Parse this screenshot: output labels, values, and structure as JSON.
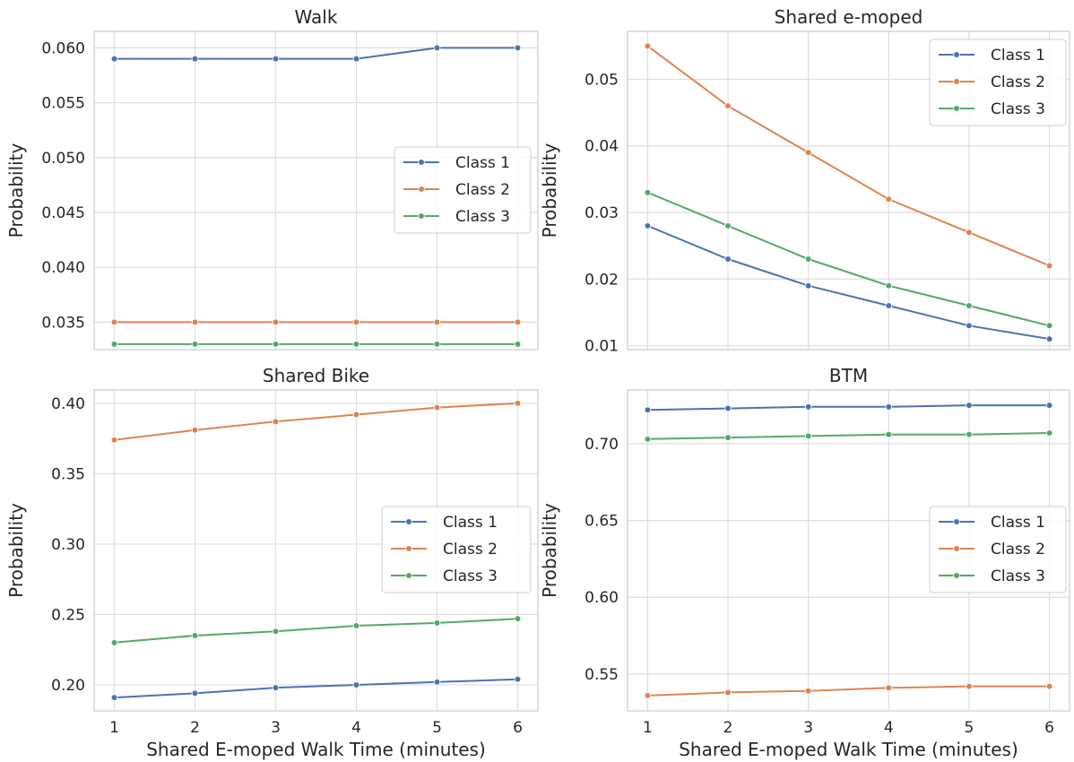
{
  "chart_data": [
    {
      "type": "line",
      "title": "Walk",
      "xlabel": "",
      "ylabel": "Probability",
      "x": [
        1,
        2,
        3,
        4,
        5,
        6
      ],
      "xlim": [
        0.75,
        6.25
      ],
      "ylim": [
        0.0325,
        0.0615
      ],
      "yticks": [
        "0.035",
        "0.040",
        "0.045",
        "0.050",
        "0.055",
        "0.060"
      ],
      "xticks": [],
      "legend": "center right",
      "grid": true,
      "series": [
        {
          "name": "Class 1",
          "color": "#4c72b0",
          "values": [
            0.059,
            0.059,
            0.059,
            0.059,
            0.06,
            0.06
          ]
        },
        {
          "name": "Class 2",
          "color": "#dd8452",
          "values": [
            0.035,
            0.035,
            0.035,
            0.035,
            0.035,
            0.035
          ]
        },
        {
          "name": "Class 3",
          "color": "#55a868",
          "values": [
            0.033,
            0.033,
            0.033,
            0.033,
            0.033,
            0.033
          ]
        }
      ]
    },
    {
      "type": "line",
      "title": "Shared e-moped",
      "xlabel": "",
      "ylabel": "Probability",
      "x": [
        1,
        2,
        3,
        4,
        5,
        6
      ],
      "xlim": [
        0.75,
        6.25
      ],
      "ylim": [
        0.0094,
        0.0572
      ],
      "yticks": [
        "0.01",
        "0.02",
        "0.03",
        "0.04",
        "0.05"
      ],
      "xticks": [],
      "legend": "upper right",
      "grid": true,
      "series": [
        {
          "name": "Class 1",
          "color": "#4c72b0",
          "values": [
            0.028,
            0.023,
            0.019,
            0.016,
            0.013,
            0.011
          ]
        },
        {
          "name": "Class 2",
          "color": "#dd8452",
          "values": [
            0.055,
            0.046,
            0.039,
            0.032,
            0.027,
            0.022
          ]
        },
        {
          "name": "Class 3",
          "color": "#55a868",
          "values": [
            0.033,
            0.028,
            0.023,
            0.019,
            0.016,
            0.013
          ]
        }
      ]
    },
    {
      "type": "line",
      "title": "Shared Bike",
      "xlabel": "Shared E-moped Walk Time (minutes)",
      "ylabel": "Probability",
      "x": [
        1,
        2,
        3,
        4,
        5,
        6
      ],
      "xlim": [
        0.75,
        6.25
      ],
      "ylim": [
        0.1815,
        0.4095
      ],
      "yticks": [
        "0.20",
        "0.25",
        "0.30",
        "0.35",
        "0.40"
      ],
      "xticks": [
        "1",
        "2",
        "3",
        "4",
        "5",
        "6"
      ],
      "legend": "center right",
      "grid": true,
      "series": [
        {
          "name": "Class 1",
          "color": "#4c72b0",
          "values": [
            0.191,
            0.194,
            0.198,
            0.2,
            0.202,
            0.204
          ]
        },
        {
          "name": "Class 2",
          "color": "#dd8452",
          "values": [
            0.374,
            0.381,
            0.387,
            0.392,
            0.397,
            0.4
          ]
        },
        {
          "name": "Class 3",
          "color": "#55a868",
          "values": [
            0.23,
            0.235,
            0.238,
            0.242,
            0.244,
            0.247
          ]
        }
      ]
    },
    {
      "type": "line",
      "title": "BTM",
      "xlabel": "Shared E-moped Walk Time (minutes)",
      "ylabel": "Probability",
      "x": [
        1,
        2,
        3,
        4,
        5,
        6
      ],
      "xlim": [
        0.75,
        6.25
      ],
      "ylim": [
        0.526,
        0.735
      ],
      "yticks": [
        "0.55",
        "0.60",
        "0.65",
        "0.70"
      ],
      "xticks": [
        "1",
        "2",
        "3",
        "4",
        "5",
        "6"
      ],
      "legend": "center right",
      "grid": true,
      "series": [
        {
          "name": "Class 1",
          "color": "#4c72b0",
          "values": [
            0.722,
            0.723,
            0.724,
            0.724,
            0.725,
            0.725
          ]
        },
        {
          "name": "Class 2",
          "color": "#dd8452",
          "values": [
            0.536,
            0.538,
            0.539,
            0.541,
            0.542,
            0.542
          ]
        },
        {
          "name": "Class 3",
          "color": "#55a868",
          "values": [
            0.703,
            0.704,
            0.705,
            0.706,
            0.706,
            0.707
          ]
        }
      ]
    }
  ]
}
